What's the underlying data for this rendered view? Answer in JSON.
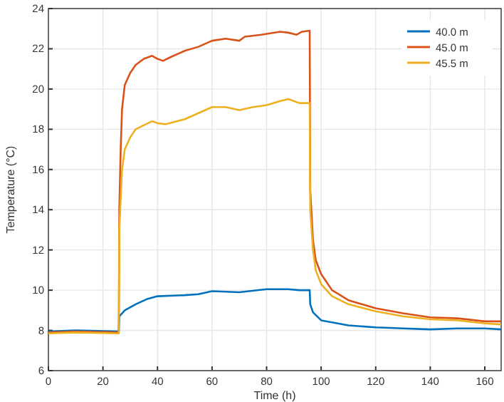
{
  "chart_data": {
    "type": "line",
    "xlabel": "Time (h)",
    "ylabel": "Temperature (°C)",
    "xlim": [
      0,
      166
    ],
    "ylim": [
      6,
      24
    ],
    "xticks": [
      0,
      20,
      40,
      60,
      80,
      100,
      120,
      140,
      160
    ],
    "yticks": [
      6,
      8,
      10,
      12,
      14,
      16,
      18,
      20,
      22,
      24
    ],
    "grid": true,
    "legend": "top right",
    "series": [
      {
        "name": "40.0 m",
        "color": "#0072bd",
        "x": [
          0,
          10,
          25.8,
          26,
          28,
          32,
          36,
          40,
          50,
          55,
          60,
          70,
          80,
          88,
          92,
          95.8,
          96,
          97,
          100,
          110,
          120,
          130,
          140,
          150,
          160,
          166
        ],
        "values": [
          7.95,
          8.0,
          7.95,
          8.7,
          9.0,
          9.3,
          9.55,
          9.7,
          9.75,
          9.8,
          9.95,
          9.9,
          10.05,
          10.05,
          10.0,
          10.0,
          9.3,
          8.9,
          8.5,
          8.25,
          8.15,
          8.1,
          8.05,
          8.1,
          8.1,
          8.05
        ]
      },
      {
        "name": "45.0 m",
        "color": "#d95319",
        "x": [
          0,
          10,
          25.8,
          26,
          26.5,
          27,
          28,
          30,
          32,
          35,
          38,
          40,
          42,
          45,
          50,
          55,
          60,
          65,
          70,
          72,
          78,
          85,
          88,
          91,
          93,
          95.8,
          96,
          97,
          98,
          100,
          104,
          110,
          120,
          130,
          140,
          150,
          160,
          166
        ],
        "values": [
          7.9,
          7.95,
          7.9,
          14,
          17,
          19,
          20.2,
          20.8,
          21.2,
          21.5,
          21.65,
          21.5,
          21.4,
          21.6,
          21.9,
          22.1,
          22.4,
          22.5,
          22.4,
          22.6,
          22.7,
          22.85,
          22.8,
          22.7,
          22.85,
          22.9,
          15,
          12.5,
          11.5,
          10.8,
          10.0,
          9.5,
          9.1,
          8.85,
          8.65,
          8.6,
          8.45,
          8.45
        ]
      },
      {
        "name": "45.5 m",
        "color": "#edb120",
        "x": [
          0,
          10,
          25.8,
          26,
          27,
          28,
          30,
          32,
          35,
          38,
          40,
          43,
          50,
          55,
          60,
          65,
          70,
          75,
          80,
          85,
          88,
          92,
          95.8,
          96,
          97,
          98,
          100,
          104,
          110,
          120,
          130,
          140,
          150,
          160,
          166
        ],
        "values": [
          7.85,
          7.9,
          7.85,
          13,
          16,
          17,
          17.6,
          18.0,
          18.2,
          18.4,
          18.3,
          18.25,
          18.5,
          18.8,
          19.1,
          19.1,
          18.95,
          19.1,
          19.2,
          19.4,
          19.5,
          19.3,
          19.3,
          14,
          12,
          11,
          10.3,
          9.7,
          9.3,
          8.95,
          8.7,
          8.55,
          8.5,
          8.35,
          8.3
        ]
      }
    ]
  }
}
